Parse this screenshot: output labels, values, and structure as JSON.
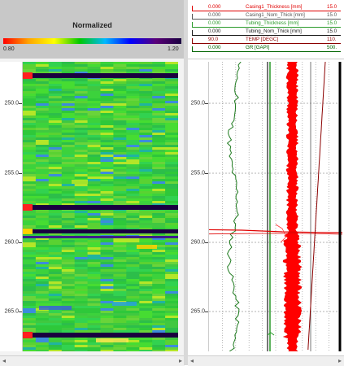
{
  "left_panel": {
    "color_scale": {
      "title": "Normalized",
      "min_label": "0.80",
      "max_label": "1.20",
      "gradient": [
        "#ff0000",
        "#ffa500",
        "#ffff00",
        "#00c800",
        "#00b8ff",
        "#0000ff",
        "#5a0078",
        "#1a0040"
      ]
    },
    "depth_labels": [
      "250.0",
      "255.0",
      "260.0",
      "265.0"
    ]
  },
  "right_panel": {
    "legend": [
      {
        "min": "0.000",
        "name": "Casing1_Thickness [mm]",
        "max": "15.0",
        "color": "#e00000"
      },
      {
        "min": "0.000",
        "name": "Casing1_Nom_Thick [mm]",
        "max": "15.0",
        "color": "#555555"
      },
      {
        "min": "0.000",
        "name": "Tubing_Thickness [mm]",
        "max": "15.0",
        "color": "#2a9a2a"
      },
      {
        "min": "0.000",
        "name": "Tubing_Nom_Thick [mm]",
        "max": "15.0",
        "color": "#1a1a1a"
      },
      {
        "min": "90.0",
        "name": "TEMP [DEGC]",
        "max": "110.",
        "color": "#8b0000"
      },
      {
        "min": "0.000",
        "name": "GR [GAPI]",
        "max": "500.",
        "color": "#006400"
      }
    ],
    "depth_labels": [
      "250.0",
      "255.0",
      "260.0",
      "265.0"
    ]
  },
  "colors": {
    "header_bg": "#c8c8c8",
    "heatmap_base": "#28d828",
    "anomaly_dark": "#1a0040"
  },
  "scrollbar": {
    "left_arrow": "◂",
    "right_arrow": "▸"
  }
}
